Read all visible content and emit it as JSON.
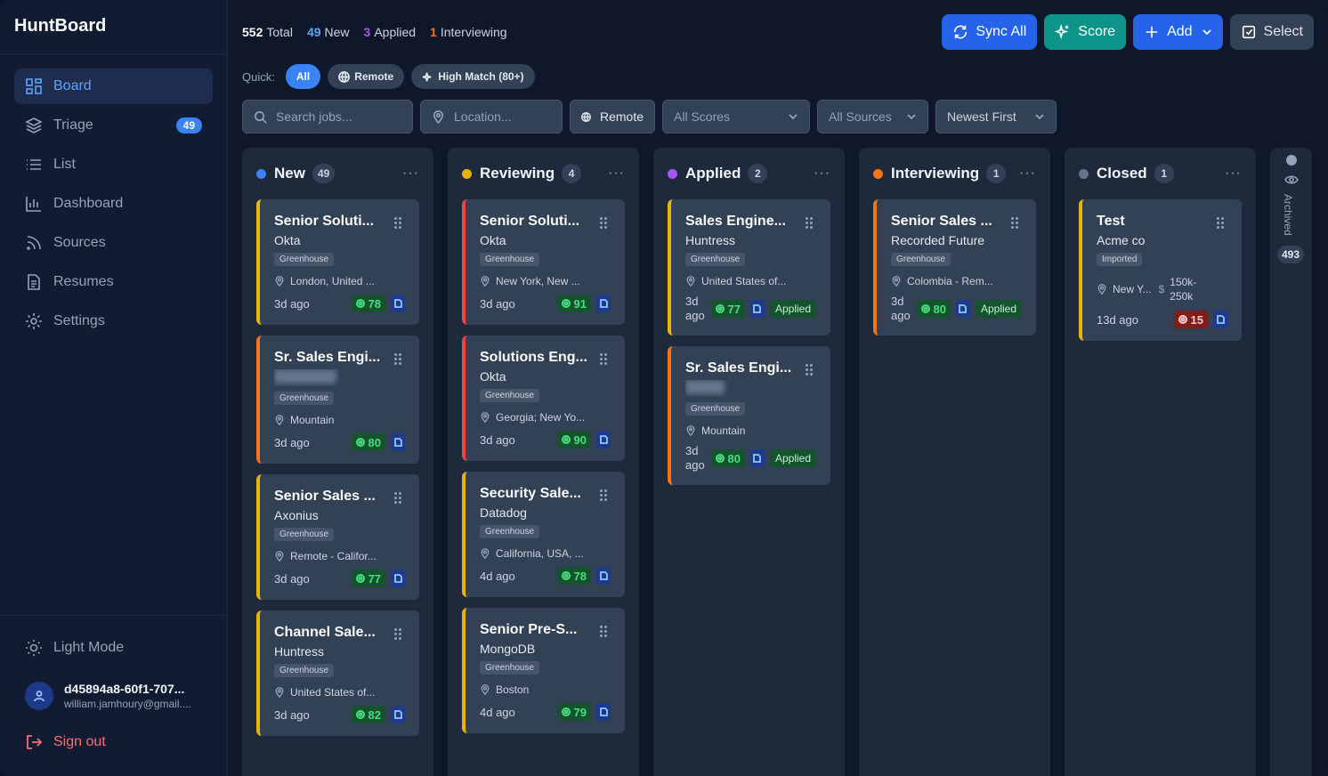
{
  "app": {
    "brand": "HuntBoard"
  },
  "sidebar": {
    "items": [
      {
        "label": "Board",
        "icon": "grid-icon",
        "active": true
      },
      {
        "label": "Triage",
        "icon": "layers-icon",
        "badge": "49"
      },
      {
        "label": "List",
        "icon": "list-icon"
      },
      {
        "label": "Dashboard",
        "icon": "bar-chart-icon"
      },
      {
        "label": "Sources",
        "icon": "rss-icon"
      },
      {
        "label": "Resumes",
        "icon": "file-icon"
      },
      {
        "label": "Settings",
        "icon": "gear-icon"
      }
    ],
    "light_mode": "Light Mode",
    "user_id": "d45894a8-60f1-707...",
    "user_email": "william.jamhoury@gmail....",
    "sign_out": "Sign out"
  },
  "stats": {
    "total_num": "552",
    "total_label": "Total",
    "new_num": "49",
    "new_label": "New",
    "applied_num": "3",
    "applied_label": "Applied",
    "int_num": "1",
    "int_label": "Interviewing"
  },
  "actions": {
    "sync": "Sync All",
    "score": "Score",
    "add": "Add",
    "select": "Select"
  },
  "quick": {
    "label": "Quick:",
    "all": "All",
    "remote": "Remote",
    "high": "High Match (80+)"
  },
  "filters": {
    "search_placeholder": "Search jobs...",
    "location_placeholder": "Location...",
    "remote": "Remote",
    "scores": "All Scores",
    "sources": "All Sources",
    "sort": "Newest First"
  },
  "colors": {
    "new": "#3b82f6",
    "reviewing": "#eab308",
    "applied": "#a855f7",
    "interviewing": "#f97316",
    "closed": "#64748b"
  },
  "columns": [
    {
      "title": "New",
      "count": "49",
      "cards": [
        {
          "title": "Senior Soluti...",
          "company": "Okta",
          "source": "Greenhouse",
          "location": "London, United ...",
          "age": "3d ago",
          "score": "78"
        },
        {
          "title": "Sr. Sales Engi...",
          "company": "",
          "source": "Greenhouse",
          "location": "Mountain",
          "age": "3d ago",
          "score": "80"
        },
        {
          "title": "Senior Sales ...",
          "company": "Axonius",
          "source": "Greenhouse",
          "location": "Remote - Califor...",
          "age": "3d ago",
          "score": "77"
        },
        {
          "title": "Channel Sale...",
          "company": "Huntress",
          "source": "Greenhouse",
          "location": "United States of...",
          "age": "3d ago",
          "score": "82"
        }
      ]
    },
    {
      "title": "Reviewing",
      "count": "4",
      "cards": [
        {
          "title": "Senior Soluti...",
          "company": "Okta",
          "source": "Greenhouse",
          "location": "New York, New ...",
          "age": "3d ago",
          "score": "91"
        },
        {
          "title": "Solutions Eng...",
          "company": "Okta",
          "source": "Greenhouse",
          "location": "Georgia; New Yo...",
          "age": "3d ago",
          "score": "90"
        },
        {
          "title": "Security Sale...",
          "company": "Datadog",
          "source": "Greenhouse",
          "location": "California, USA, ...",
          "age": "4d ago",
          "score": "78"
        },
        {
          "title": "Senior Pre-S...",
          "company": "MongoDB",
          "source": "Greenhouse",
          "location": "Boston",
          "age": "4d ago",
          "score": "79"
        }
      ]
    },
    {
      "title": "Applied",
      "count": "2",
      "cards": [
        {
          "title": "Sales Engine...",
          "company": "Huntress",
          "source": "Greenhouse",
          "location": "United States of...",
          "age_1": "3d",
          "age_2": "ago",
          "score": "77",
          "status": "Applied"
        },
        {
          "title": "Sr. Sales Engi...",
          "company": "",
          "source": "Greenhouse",
          "location": "Mountain",
          "age_1": "3d",
          "age_2": "ago",
          "score": "80",
          "status": "Applied"
        }
      ]
    },
    {
      "title": "Interviewing",
      "count": "1",
      "cards": [
        {
          "title": "Senior Sales ...",
          "company": "Recorded Future",
          "source": "Greenhouse",
          "location": "Colombia - Rem...",
          "age_1": "3d",
          "age_2": "ago",
          "score": "80",
          "status": "Applied"
        }
      ]
    },
    {
      "title": "Closed",
      "count": "1",
      "cards": [
        {
          "title": "Test",
          "company": "Acme co",
          "source": "Imported",
          "location": "New Y...",
          "salary_1": "150k-",
          "salary_2": "250k",
          "age": "13d ago",
          "score": "15"
        }
      ]
    }
  ],
  "archived": {
    "label": "Archived",
    "count": "493"
  }
}
